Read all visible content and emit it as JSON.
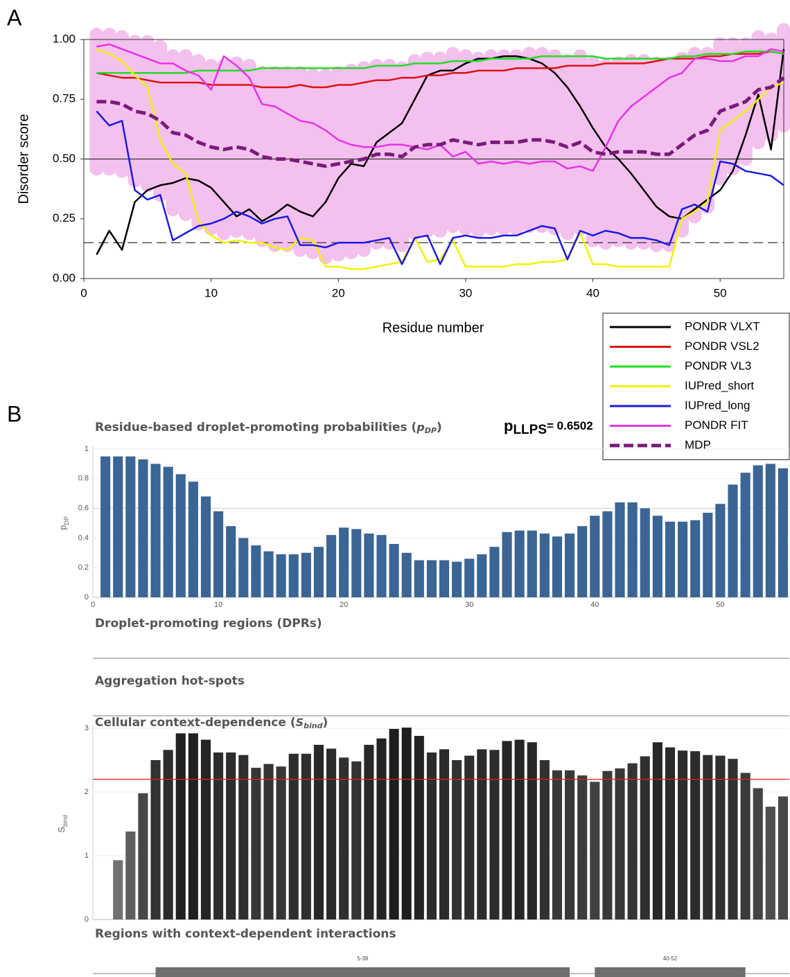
{
  "chart_data": [
    {
      "type": "line",
      "panel": "A",
      "xlabel": "Residue number",
      "ylabel": "Disorder score",
      "x": [
        1,
        2,
        3,
        4,
        5,
        6,
        7,
        8,
        9,
        10,
        11,
        12,
        13,
        14,
        15,
        16,
        17,
        18,
        19,
        20,
        21,
        22,
        23,
        24,
        25,
        26,
        27,
        28,
        29,
        30,
        31,
        32,
        33,
        34,
        35,
        36,
        37,
        38,
        39,
        40,
        41,
        42,
        43,
        44,
        45,
        46,
        47,
        48,
        49,
        50,
        51,
        52,
        53,
        54,
        55
      ],
      "xlim": [
        0,
        55
      ],
      "ylim": [
        0,
        1
      ],
      "xticks": [
        0,
        10,
        20,
        30,
        40,
        50
      ],
      "yticks": [
        {
          "value": 0,
          "label": "0.00"
        },
        0.25,
        {
          "value": 0.5,
          "label": "0.50"
        },
        0.75,
        {
          "value": 1,
          "label": "1.00"
        }
      ],
      "reference_lines": [
        {
          "value": 0.5,
          "style": "solid"
        },
        {
          "value": 0.15,
          "style": "dashed"
        }
      ],
      "legend": "lower right",
      "series": [
        {
          "name": "PONDR VLXT",
          "color": "#000000",
          "values": [
            0.1,
            0.2,
            0.12,
            0.32,
            0.37,
            0.39,
            0.4,
            0.42,
            0.41,
            0.38,
            0.32,
            0.26,
            0.29,
            0.24,
            0.27,
            0.31,
            0.28,
            0.26,
            0.32,
            0.42,
            0.48,
            0.47,
            0.57,
            0.61,
            0.65,
            0.75,
            0.85,
            0.87,
            0.87,
            0.9,
            0.92,
            0.92,
            0.93,
            0.93,
            0.92,
            0.9,
            0.86,
            0.8,
            0.72,
            0.63,
            0.55,
            0.5,
            0.44,
            0.37,
            0.3,
            0.26,
            0.25,
            0.29,
            0.33,
            0.37,
            0.45,
            0.6,
            0.77,
            0.54,
            0.96
          ]
        },
        {
          "name": "PONDR VSL2",
          "color": "#dd1111",
          "values": [
            0.86,
            0.85,
            0.84,
            0.84,
            0.83,
            0.82,
            0.82,
            0.82,
            0.82,
            0.81,
            0.81,
            0.81,
            0.81,
            0.8,
            0.8,
            0.8,
            0.81,
            0.8,
            0.8,
            0.81,
            0.81,
            0.82,
            0.83,
            0.83,
            0.84,
            0.84,
            0.85,
            0.85,
            0.86,
            0.86,
            0.87,
            0.87,
            0.87,
            0.88,
            0.88,
            0.88,
            0.88,
            0.89,
            0.89,
            0.89,
            0.9,
            0.9,
            0.9,
            0.9,
            0.91,
            0.92,
            0.92,
            0.92,
            0.93,
            0.93,
            0.94,
            0.94,
            0.94,
            0.95,
            0.94
          ]
        },
        {
          "name": "PONDR VL3",
          "color": "#22dd22",
          "values": [
            0.86,
            0.86,
            0.86,
            0.86,
            0.86,
            0.86,
            0.86,
            0.86,
            0.87,
            0.87,
            0.87,
            0.87,
            0.87,
            0.88,
            0.88,
            0.88,
            0.88,
            0.88,
            0.88,
            0.88,
            0.88,
            0.88,
            0.89,
            0.89,
            0.89,
            0.9,
            0.9,
            0.9,
            0.91,
            0.91,
            0.91,
            0.92,
            0.92,
            0.92,
            0.92,
            0.93,
            0.93,
            0.93,
            0.93,
            0.93,
            0.92,
            0.92,
            0.92,
            0.92,
            0.92,
            0.92,
            0.93,
            0.93,
            0.94,
            0.94,
            0.94,
            0.95,
            0.95,
            0.95,
            0.94
          ]
        },
        {
          "name": "IUPred_short",
          "color": "#f2f200",
          "values": [
            0.96,
            0.94,
            0.91,
            0.85,
            0.8,
            0.58,
            0.48,
            0.44,
            0.24,
            0.18,
            0.15,
            0.16,
            0.15,
            0.15,
            0.13,
            0.12,
            0.17,
            0.16,
            0.05,
            0.05,
            0.04,
            0.04,
            0.05,
            0.06,
            0.07,
            0.17,
            0.07,
            0.08,
            0.16,
            0.05,
            0.05,
            0.05,
            0.05,
            0.06,
            0.06,
            0.07,
            0.07,
            0.08,
            0.19,
            0.06,
            0.06,
            0.05,
            0.05,
            0.05,
            0.05,
            0.05,
            0.25,
            0.28,
            0.32,
            0.62,
            0.66,
            0.7,
            0.75,
            0.8,
            0.82
          ]
        },
        {
          "name": "IUPred_long",
          "color": "#1a1ae0",
          "values": [
            0.7,
            0.64,
            0.66,
            0.37,
            0.33,
            0.35,
            0.16,
            0.19,
            0.22,
            0.23,
            0.25,
            0.28,
            0.26,
            0.23,
            0.25,
            0.26,
            0.14,
            0.14,
            0.13,
            0.15,
            0.15,
            0.15,
            0.16,
            0.17,
            0.06,
            0.17,
            0.18,
            0.06,
            0.17,
            0.18,
            0.17,
            0.17,
            0.18,
            0.18,
            0.2,
            0.22,
            0.21,
            0.08,
            0.2,
            0.18,
            0.2,
            0.19,
            0.17,
            0.17,
            0.16,
            0.14,
            0.29,
            0.31,
            0.28,
            0.49,
            0.48,
            0.45,
            0.44,
            0.43,
            0.39
          ]
        },
        {
          "name": "PONDR FIT",
          "color": "#e633e6",
          "values": [
            0.97,
            0.98,
            0.96,
            0.94,
            0.92,
            0.9,
            0.9,
            0.87,
            0.85,
            0.79,
            0.93,
            0.89,
            0.84,
            0.73,
            0.72,
            0.69,
            0.66,
            0.65,
            0.62,
            0.58,
            0.56,
            0.55,
            0.55,
            0.56,
            0.56,
            0.55,
            0.54,
            0.56,
            0.51,
            0.53,
            0.48,
            0.49,
            0.48,
            0.49,
            0.48,
            0.49,
            0.49,
            0.46,
            0.47,
            0.45,
            0.55,
            0.66,
            0.72,
            0.76,
            0.8,
            0.84,
            0.86,
            0.92,
            0.92,
            0.91,
            0.91,
            0.93,
            0.93,
            0.96,
            0.95
          ]
        },
        {
          "name": "MDP",
          "color": "#7a1a7a",
          "dashed": true,
          "band_color": "#f4c0ee",
          "values": [
            0.74,
            0.74,
            0.73,
            0.7,
            0.69,
            0.66,
            0.61,
            0.6,
            0.57,
            0.55,
            0.54,
            0.55,
            0.54,
            0.51,
            0.5,
            0.5,
            0.49,
            0.48,
            0.47,
            0.48,
            0.49,
            0.5,
            0.52,
            0.52,
            0.51,
            0.55,
            0.56,
            0.56,
            0.58,
            0.57,
            0.56,
            0.57,
            0.57,
            0.57,
            0.58,
            0.58,
            0.57,
            0.55,
            0.57,
            0.53,
            0.52,
            0.53,
            0.53,
            0.53,
            0.52,
            0.52,
            0.56,
            0.6,
            0.62,
            0.7,
            0.72,
            0.74,
            0.79,
            0.8,
            0.84
          ],
          "errors": [
            0.28,
            0.28,
            0.28,
            0.29,
            0.3,
            0.31,
            0.32,
            0.33,
            0.34,
            0.34,
            0.35,
            0.35,
            0.35,
            0.35,
            0.36,
            0.36,
            0.37,
            0.37,
            0.38,
            0.38,
            0.38,
            0.38,
            0.37,
            0.37,
            0.37,
            0.36,
            0.36,
            0.36,
            0.36,
            0.36,
            0.36,
            0.36,
            0.36,
            0.36,
            0.36,
            0.36,
            0.36,
            0.36,
            0.36,
            0.37,
            0.37,
            0.37,
            0.38,
            0.38,
            0.38,
            0.38,
            0.36,
            0.34,
            0.32,
            0.28,
            0.26,
            0.24,
            0.22,
            0.2,
            0.2
          ]
        }
      ]
    },
    {
      "type": "bar",
      "panel": "B",
      "title_parts": [
        "Residue-based droplet-promoting probabilities (",
        "p",
        "DP",
        ")"
      ],
      "annotation_parts": [
        "p",
        "LLPS",
        "= 0.6502"
      ],
      "ylabel_parts": [
        "p",
        "DP"
      ],
      "x": [
        1,
        2,
        3,
        4,
        5,
        6,
        7,
        8,
        9,
        10,
        11,
        12,
        13,
        14,
        15,
        16,
        17,
        18,
        19,
        20,
        21,
        22,
        23,
        24,
        25,
        26,
        27,
        28,
        29,
        30,
        31,
        32,
        33,
        34,
        35,
        36,
        37,
        38,
        39,
        40,
        41,
        42,
        43,
        44,
        45,
        46,
        47,
        48,
        49,
        50,
        51,
        52,
        53,
        54,
        55
      ],
      "values": [
        0.95,
        0.95,
        0.95,
        0.93,
        0.9,
        0.88,
        0.83,
        0.78,
        0.68,
        0.58,
        0.48,
        0.4,
        0.35,
        0.31,
        0.29,
        0.29,
        0.3,
        0.34,
        0.42,
        0.47,
        0.46,
        0.43,
        0.42,
        0.36,
        0.3,
        0.25,
        0.25,
        0.25,
        0.24,
        0.26,
        0.29,
        0.34,
        0.44,
        0.45,
        0.45,
        0.43,
        0.41,
        0.43,
        0.48,
        0.55,
        0.58,
        0.64,
        0.64,
        0.6,
        0.55,
        0.51,
        0.51,
        0.52,
        0.57,
        0.63,
        0.76,
        0.84,
        0.89,
        0.9,
        0.87
      ],
      "color": "#3b6594",
      "xlim": [
        0,
        55.5
      ],
      "ylim": [
        0,
        1
      ],
      "xticks": [
        0,
        10,
        20,
        30,
        40,
        50
      ],
      "yticks": [
        0,
        0.2,
        0.4,
        0.6,
        0.8,
        1
      ],
      "grid": true,
      "sections": [
        "Droplet-promoting regions (DPRs)",
        "Aggregation hot-spots"
      ]
    },
    {
      "type": "bar",
      "title_parts": [
        "Cellular context-dependence (",
        "S",
        "bind",
        ")"
      ],
      "ylabel_parts": [
        "S",
        "bind"
      ],
      "x": [
        1,
        2,
        3,
        4,
        5,
        6,
        7,
        8,
        9,
        10,
        11,
        12,
        13,
        14,
        15,
        16,
        17,
        18,
        19,
        20,
        21,
        22,
        23,
        24,
        25,
        26,
        27,
        28,
        29,
        30,
        31,
        32,
        33,
        34,
        35,
        36,
        37,
        38,
        39,
        40,
        41,
        42,
        43,
        44,
        45,
        46,
        47,
        48,
        49,
        50,
        51,
        52,
        53,
        54,
        55
      ],
      "values": [
        0,
        0.93,
        1.38,
        1.98,
        2.5,
        2.66,
        2.92,
        2.92,
        2.82,
        2.62,
        2.62,
        2.58,
        2.38,
        2.44,
        2.4,
        2.6,
        2.6,
        2.74,
        2.68,
        2.54,
        2.48,
        2.74,
        2.84,
        2.99,
        3.01,
        2.88,
        2.62,
        2.67,
        2.5,
        2.57,
        2.67,
        2.66,
        2.8,
        2.82,
        2.78,
        2.5,
        2.34,
        2.34,
        2.26,
        2.16,
        2.33,
        2.37,
        2.45,
        2.56,
        2.78,
        2.7,
        2.65,
        2.64,
        2.58,
        2.57,
        2.52,
        2.3,
        2.06,
        1.77,
        1.93
      ],
      "xlim": [
        0,
        55.5
      ],
      "ylim": [
        0,
        3
      ],
      "yticks": [
        0,
        1,
        2,
        3
      ],
      "grid": true,
      "threshold": {
        "value": 2.2,
        "color": "#e02020"
      },
      "regions_title": "Regions with context-dependent interactions",
      "regions": [
        {
          "label": "5-38",
          "start": 5,
          "end": 38
        },
        {
          "label": "40-52",
          "start": 40,
          "end": 52
        }
      ]
    }
  ]
}
